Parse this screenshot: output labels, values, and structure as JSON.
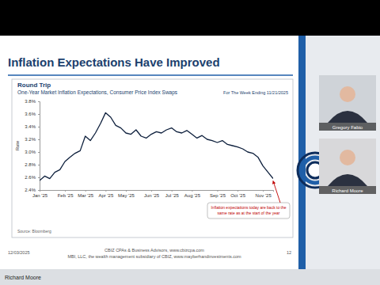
{
  "slide": {
    "title": "Inflation Expectations Have Improved",
    "footer_lines": [
      "CBIZ CPAs & Business Advisors, www.cbizcpa.com",
      "MBI, LLC, the wealth management subsidiary of CBIZ, www.mayberhandinvestments.com"
    ],
    "date": "12/03/2025",
    "page": "12"
  },
  "participants": [
    "Gregory Fabio",
    "Richard Moore"
  ],
  "presenter": "Richard Moore",
  "chart_data": {
    "type": "line",
    "title": "Round Trip",
    "subtitle": "One-Year Market Inflation Expectations, Consumer Price Index Swaps",
    "note": "For The Week Ending 11/21/2025",
    "y_label": "Rate",
    "source": "Source: Bloomberg",
    "annotation": [
      "Inflation expectations today are back to the",
      "same rate as at the start of the year"
    ],
    "color": "#0d1f3c",
    "grid": false,
    "categories": [
      "Jan '25",
      null,
      null,
      null,
      null,
      "Feb '25",
      null,
      null,
      null,
      "Mar '25",
      null,
      null,
      null,
      "Apr '25",
      null,
      null,
      null,
      "May '25",
      null,
      null,
      null,
      null,
      "Jun '25",
      null,
      null,
      null,
      "Jul '25",
      null,
      null,
      null,
      "Aug '25",
      null,
      null,
      null,
      null,
      "Sep '25",
      null,
      null,
      null,
      "Oct '25",
      null,
      null,
      null,
      null,
      "Nov '25",
      null,
      null
    ],
    "values": [
      2.55,
      2.62,
      2.58,
      2.68,
      2.72,
      2.85,
      2.92,
      2.98,
      3.02,
      3.25,
      3.18,
      3.3,
      3.45,
      3.62,
      3.55,
      3.42,
      3.38,
      3.3,
      3.28,
      3.35,
      3.25,
      3.22,
      3.28,
      3.32,
      3.3,
      3.35,
      3.38,
      3.32,
      3.3,
      3.34,
      3.28,
      3.22,
      3.26,
      3.2,
      3.18,
      3.15,
      3.18,
      3.12,
      3.1,
      3.08,
      3.05,
      3.0,
      2.98,
      2.92,
      2.78,
      2.68,
      2.58
    ],
    "ylim": [
      2.4,
      3.8
    ],
    "yticks": [
      {
        "value": 2.4,
        "label": "2.4%"
      },
      {
        "value": 2.6,
        "label": "2.6%"
      },
      {
        "value": 2.8,
        "label": "2.8%"
      },
      {
        "value": 3.0,
        "label": "3.0%"
      },
      {
        "value": 3.2,
        "label": "3.2%"
      },
      {
        "value": 3.4,
        "label": "3.4%"
      },
      {
        "value": 3.6,
        "label": "3.6%"
      },
      {
        "value": 3.8,
        "label": "3.8%"
      }
    ]
  }
}
